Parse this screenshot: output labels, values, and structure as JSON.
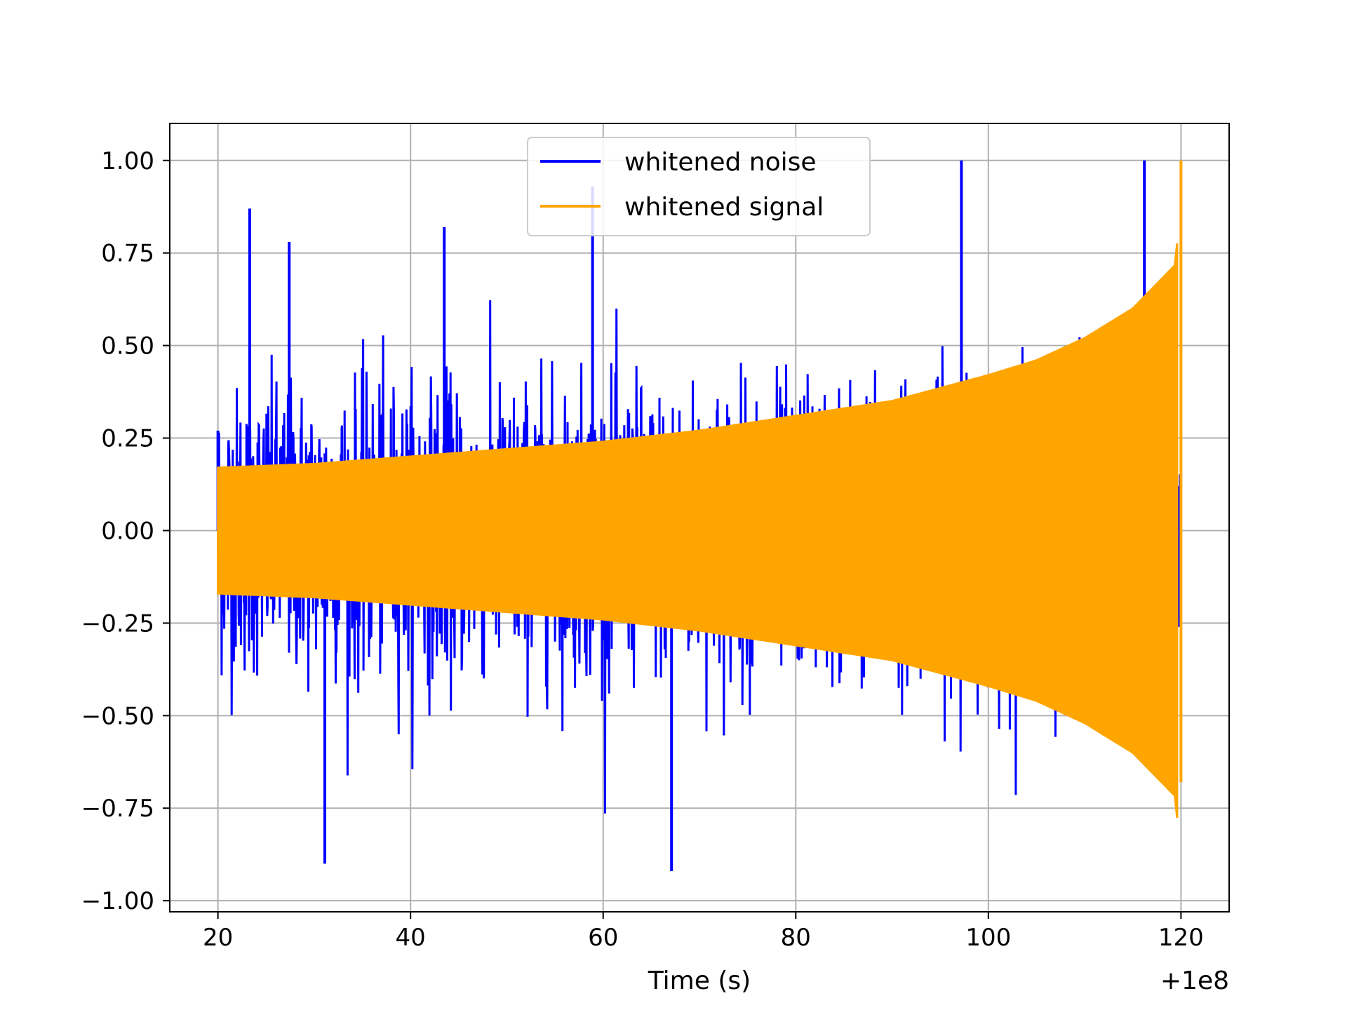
{
  "chart_data": {
    "type": "line",
    "title": "",
    "xlabel": "Time (s)",
    "ylabel": "",
    "x_offset_label": "+1e8",
    "xlim": [
      15,
      125
    ],
    "ylim": [
      -1.03,
      1.1
    ],
    "xticks": [
      20,
      40,
      60,
      80,
      100,
      120
    ],
    "xtick_labels": [
      "20",
      "40",
      "60",
      "80",
      "100",
      "120"
    ],
    "yticks": [
      -1.0,
      -0.75,
      -0.5,
      -0.25,
      0.0,
      0.25,
      0.5,
      0.75,
      1.0
    ],
    "ytick_labels": [
      "−1.00",
      "−0.75",
      "−0.50",
      "−0.25",
      "0.00",
      "0.25",
      "0.50",
      "0.75",
      "1.00"
    ],
    "grid": true,
    "legend_position": "top-center",
    "series": [
      {
        "name": "whitened noise",
        "color": "#0000ff",
        "description": "dense oscillating noise, peaks up to about ±1.0",
        "x": [
          20,
          23.3,
          27.4,
          31.1,
          43.5,
          58.9,
          67.1,
          97.2,
          116.2
        ],
        "y": [
          0.27,
          0.87,
          0.78,
          -0.9,
          0.82,
          0.93,
          -0.92,
          1.0,
          1.0
        ],
        "typical_envelope": 0.55
      },
      {
        "name": "whitened signal",
        "color": "#ffa500",
        "description": "chirp with growing amplitude",
        "x": [
          20,
          30,
          40,
          50,
          60,
          70,
          80,
          90,
          100,
          105,
          110,
          115,
          119.5,
          120
        ],
        "envelope": [
          0.17,
          0.18,
          0.2,
          0.22,
          0.24,
          0.27,
          0.31,
          0.35,
          0.42,
          0.46,
          0.52,
          0.6,
          0.72,
          1.0
        ]
      }
    ]
  }
}
